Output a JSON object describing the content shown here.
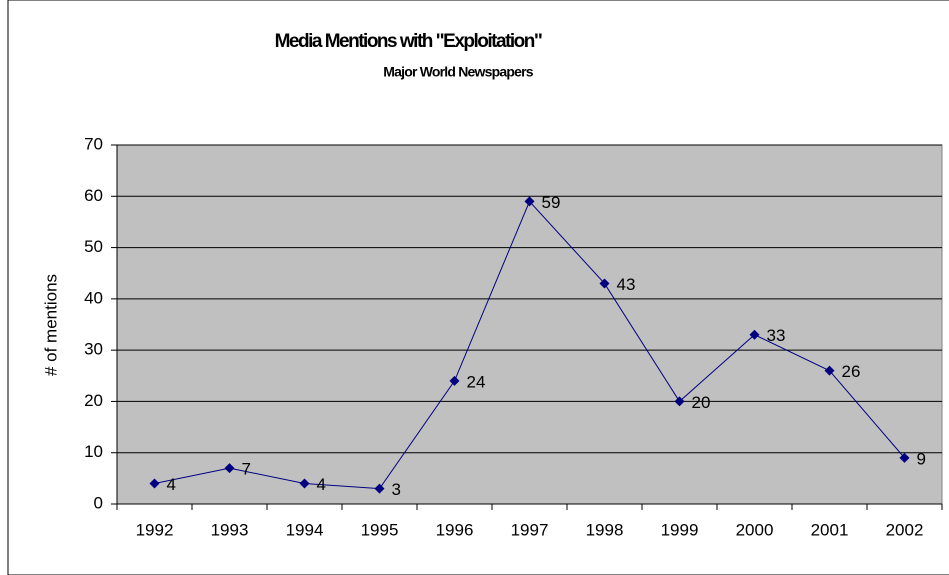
{
  "chart_data": {
    "type": "line",
    "title": "Media Mentions with \"Exploitation\"",
    "subtitle": "Major World Newspapers",
    "y_label": "# of mentions",
    "categories": [
      "1992",
      "1993",
      "1994",
      "1995",
      "1996",
      "1997",
      "1998",
      "1999",
      "2000",
      "2001",
      "2002"
    ],
    "values": [
      4,
      7,
      4,
      3,
      24,
      59,
      43,
      20,
      33,
      26,
      9
    ],
    "color": "#000080",
    "plot_background": "#c0c0c0",
    "ylim": [
      0,
      70
    ],
    "yticks": [
      0,
      10,
      20,
      30,
      40,
      50,
      60,
      70
    ],
    "grid": true
  }
}
